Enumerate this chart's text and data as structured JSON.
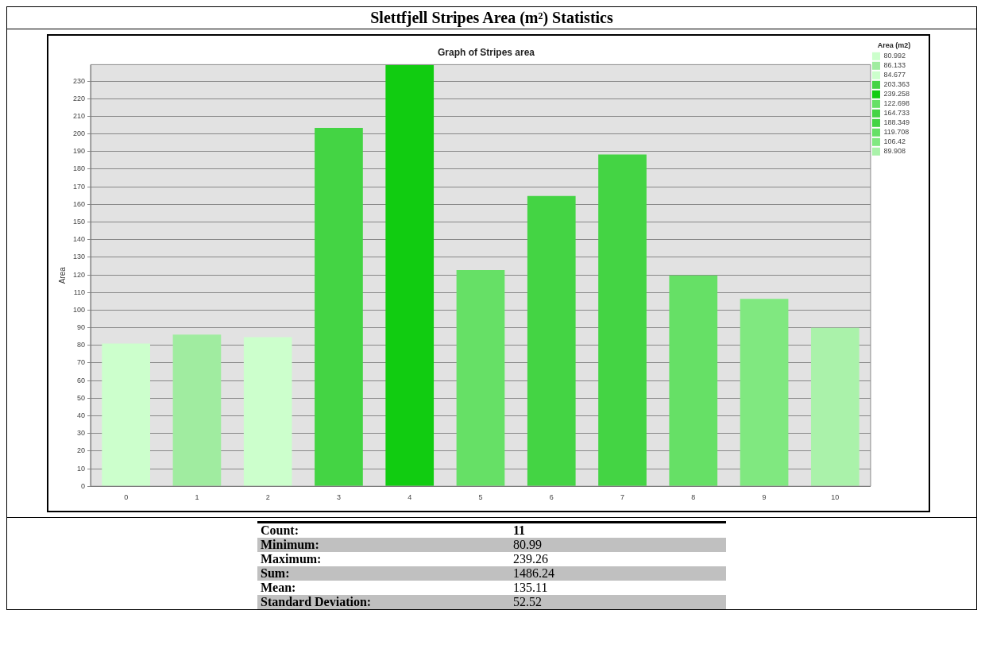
{
  "chart_data": {
    "type": "bar",
    "title": "Graph of Stripes area",
    "subtitle": "Slettfjell Stripes Area (m²) Statistics",
    "ylabel": "Area",
    "legend_title": "Area (m2)",
    "categories": [
      "0",
      "1",
      "2",
      "3",
      "4",
      "5",
      "6",
      "7",
      "8",
      "9",
      "10"
    ],
    "series": [
      {
        "name": "80.992",
        "color": "#ccffcc",
        "values": [
          80.992,
          null,
          null,
          null,
          null,
          null,
          null,
          null,
          null,
          null,
          null
        ]
      },
      {
        "name": "86.133",
        "color": "#a0eca0",
        "values": [
          null,
          86.133,
          null,
          null,
          null,
          null,
          null,
          null,
          null,
          null,
          null
        ]
      },
      {
        "name": "84.677",
        "color": "#ccffcc",
        "values": [
          null,
          null,
          84.677,
          null,
          null,
          null,
          null,
          null,
          null,
          null,
          null
        ]
      },
      {
        "name": "203.363",
        "color": "#44d444",
        "values": [
          null,
          null,
          null,
          203.363,
          null,
          null,
          null,
          null,
          null,
          null,
          null
        ]
      },
      {
        "name": "239.258",
        "color": "#11cc11",
        "values": [
          null,
          null,
          null,
          null,
          239.258,
          null,
          null,
          null,
          null,
          null,
          null
        ]
      },
      {
        "name": "122.698",
        "color": "#66e066",
        "values": [
          null,
          null,
          null,
          null,
          null,
          122.698,
          null,
          null,
          null,
          null,
          null
        ]
      },
      {
        "name": "164.733",
        "color": "#44d444",
        "values": [
          null,
          null,
          null,
          null,
          null,
          null,
          164.733,
          null,
          null,
          null,
          null
        ]
      },
      {
        "name": "188.349",
        "color": "#44d444",
        "values": [
          null,
          null,
          null,
          null,
          null,
          null,
          null,
          188.349,
          null,
          null,
          null
        ]
      },
      {
        "name": "119.708",
        "color": "#66e066",
        "values": [
          null,
          null,
          null,
          null,
          null,
          null,
          null,
          null,
          119.708,
          null,
          null
        ]
      },
      {
        "name": "106.42",
        "color": "#80e880",
        "values": [
          null,
          null,
          null,
          null,
          null,
          null,
          null,
          null,
          null,
          106.42,
          null
        ]
      },
      {
        "name": "89.908",
        "color": "#aaf2aa",
        "values": [
          null,
          null,
          null,
          null,
          null,
          null,
          null,
          null,
          null,
          null,
          89.908
        ]
      }
    ],
    "ylim": [
      0,
      239.3
    ],
    "yticks": [
      0,
      10,
      20,
      30,
      40,
      50,
      60,
      70,
      80,
      90,
      100,
      110,
      120,
      130,
      140,
      150,
      160,
      170,
      180,
      190,
      200,
      210,
      220,
      230
    ],
    "grid": "y",
    "legend": "top right",
    "annotations": [
      "Count:",
      "11",
      "Minimum:",
      "80.99",
      "Maximum:",
      "239.26",
      "Sum:",
      "1486.24",
      "Mean:",
      "135.11",
      "Standard Deviation:",
      "52.52"
    ]
  }
}
